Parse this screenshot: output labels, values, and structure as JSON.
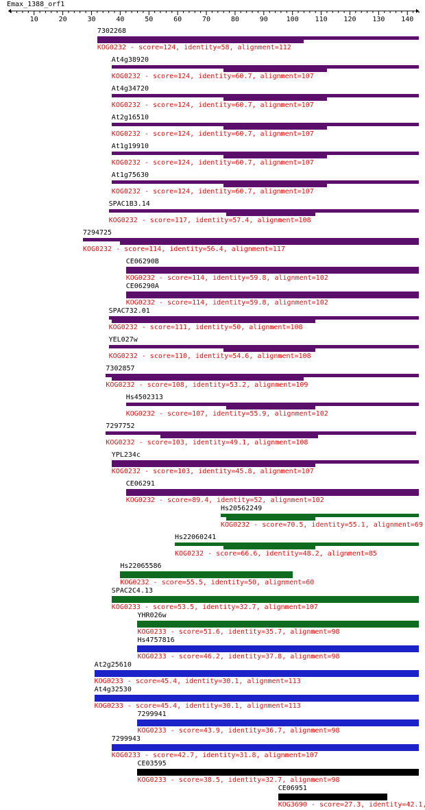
{
  "query": "Emax_1388_orf1",
  "axis": {
    "min": 1,
    "max": 144,
    "ticks": [
      10,
      20,
      30,
      40,
      50,
      60,
      70,
      80,
      90,
      100,
      110,
      120,
      130,
      140
    ]
  },
  "colors": {
    "purple": "#5b0f6b",
    "green": "#0f6b1f",
    "blue": "#1a22c8",
    "black": "#000000",
    "label_red": "#e01010"
  },
  "hits": [
    {
      "name": "7302268",
      "kog": "KOG0232",
      "score": "124",
      "identity": "58",
      "alignment": "112",
      "color": "purple",
      "bar_start": 32,
      "bar_end": 144,
      "inner_start": 32,
      "inner_end": 104
    },
    {
      "name": "At4g38920",
      "kog": "KOG0232",
      "score": "124",
      "identity": "60.7",
      "alignment": "107",
      "color": "purple",
      "bar_start": 37,
      "bar_end": 144,
      "inner_start": 76,
      "inner_end": 112
    },
    {
      "name": "At4g34720",
      "kog": "KOG0232",
      "score": "124",
      "identity": "60.7",
      "alignment": "107",
      "color": "purple",
      "bar_start": 37,
      "bar_end": 144,
      "inner_start": 76,
      "inner_end": 112
    },
    {
      "name": "At2g16510",
      "kog": "KOG0232",
      "score": "124",
      "identity": "60.7",
      "alignment": "107",
      "color": "purple",
      "bar_start": 37,
      "bar_end": 144,
      "inner_start": 76,
      "inner_end": 112
    },
    {
      "name": "At1g19910",
      "kog": "KOG0232",
      "score": "124",
      "identity": "60.7",
      "alignment": "107",
      "color": "purple",
      "bar_start": 37,
      "bar_end": 144,
      "inner_start": 76,
      "inner_end": 112
    },
    {
      "name": "At1g75630",
      "kog": "KOG0232",
      "score": "124",
      "identity": "60.7",
      "alignment": "107",
      "color": "purple",
      "bar_start": 37,
      "bar_end": 144,
      "inner_start": 76,
      "inner_end": 112
    },
    {
      "name": "SPAC1B3.14",
      "kog": "KOG0232",
      "score": "117",
      "identity": "57.4",
      "alignment": "108",
      "color": "purple",
      "bar_start": 36,
      "bar_end": 144,
      "inner_start": 77,
      "inner_end": 108
    },
    {
      "name": "7294725",
      "kog": "KOG0232",
      "score": "114",
      "identity": "56.4",
      "alignment": "117",
      "color": "purple",
      "bar_start": 27,
      "bar_end": 144,
      "inner_start": 40,
      "inner_end": 144
    },
    {
      "name": "CE06290B",
      "kog": "KOG0232",
      "score": "114",
      "identity": "59.8",
      "alignment": "102",
      "color": "purple",
      "bar_start": 42,
      "bar_end": 144,
      "inner_start": 42,
      "inner_end": 144
    },
    {
      "name": "CE06290A",
      "kog": "KOG0232",
      "score": "114",
      "identity": "59.8",
      "alignment": "102",
      "color": "purple",
      "bar_start": 42,
      "bar_end": 144,
      "inner_start": 42,
      "inner_end": 144
    },
    {
      "name": "SPAC732.01",
      "kog": "KOG0232",
      "score": "111",
      "identity": "50",
      "alignment": "108",
      "color": "purple",
      "bar_start": 36,
      "bar_end": 144,
      "inner_start": 37,
      "inner_end": 108
    },
    {
      "name": "YEL027w",
      "kog": "KOG0232",
      "score": "110",
      "identity": "54.6",
      "alignment": "108",
      "color": "purple",
      "bar_start": 36,
      "bar_end": 144,
      "inner_start": 76,
      "inner_end": 108
    },
    {
      "name": "7302857",
      "kog": "KOG0232",
      "score": "108",
      "identity": "53.2",
      "alignment": "109",
      "color": "purple",
      "bar_start": 35,
      "bar_end": 144,
      "inner_start": 37,
      "inner_end": 104
    },
    {
      "name": "Hs4502313",
      "kog": "KOG0232",
      "score": "107",
      "identity": "55.9",
      "alignment": "102",
      "color": "purple",
      "bar_start": 42,
      "bar_end": 144,
      "inner_start": 77,
      "inner_end": 108
    },
    {
      "name": "7297752",
      "kog": "KOG0232",
      "score": "103",
      "identity": "49.1",
      "alignment": "108",
      "color": "purple",
      "bar_start": 35,
      "bar_end": 143,
      "inner_start": 54,
      "inner_end": 109
    },
    {
      "name": "YPL234c",
      "kog": "KOG0232",
      "score": "103",
      "identity": "45.8",
      "alignment": "107",
      "color": "purple",
      "bar_start": 37,
      "bar_end": 144,
      "inner_start": 37,
      "inner_end": 108
    },
    {
      "name": "CE06291",
      "kog": "KOG0232",
      "score": "89.4",
      "identity": "52",
      "alignment": "102",
      "color": "purple",
      "bar_start": 42,
      "bar_end": 144,
      "inner_start": 42,
      "inner_end": 144
    },
    {
      "name": "Hs20562249",
      "kog": "KOG0232",
      "score": "70.5",
      "identity": "55.1",
      "alignment": "69",
      "color": "green",
      "bar_start": 75,
      "bar_end": 144,
      "inner_start": 77,
      "inner_end": 108
    },
    {
      "name": "Hs22060241",
      "kog": "KOG0232",
      "score": "66.6",
      "identity": "48.2",
      "alignment": "85",
      "color": "green",
      "bar_start": 59,
      "bar_end": 144,
      "inner_start": 76,
      "inner_end": 108
    },
    {
      "name": "Hs22065586",
      "kog": "KOG0232",
      "score": "55.5",
      "identity": "50",
      "alignment": "60",
      "color": "green",
      "bar_start": 40,
      "bar_end": 100,
      "inner_start": 40,
      "inner_end": 100
    },
    {
      "name": "SPAC2C4.13",
      "kog": "KOG0233",
      "score": "53.5",
      "identity": "32.7",
      "alignment": "107",
      "color": "green",
      "bar_start": 37,
      "bar_end": 144,
      "inner_start": 37,
      "inner_end": 144
    },
    {
      "name": "YHR026w",
      "kog": "KOG0233",
      "score": "51.6",
      "identity": "35.7",
      "alignment": "98",
      "color": "green",
      "bar_start": 46,
      "bar_end": 144,
      "inner_start": 46,
      "inner_end": 144
    },
    {
      "name": "Hs4757816",
      "kog": "KOG0233",
      "score": "46.2",
      "identity": "37.8",
      "alignment": "98",
      "color": "blue",
      "bar_start": 46,
      "bar_end": 144,
      "inner_start": 46,
      "inner_end": 144
    },
    {
      "name": "At2g25610",
      "kog": "KOG0233",
      "score": "45.4",
      "identity": "30.1",
      "alignment": "113",
      "color": "blue",
      "bar_start": 31,
      "bar_end": 144,
      "inner_start": 31,
      "inner_end": 144
    },
    {
      "name": "At4g32530",
      "kog": "KOG0233",
      "score": "45.4",
      "identity": "30.1",
      "alignment": "113",
      "color": "blue",
      "bar_start": 31,
      "bar_end": 144,
      "inner_start": 31,
      "inner_end": 144
    },
    {
      "name": "7299941",
      "kog": "KOG0233",
      "score": "43.9",
      "identity": "36.7",
      "alignment": "98",
      "color": "blue",
      "bar_start": 46,
      "bar_end": 144,
      "inner_start": 46,
      "inner_end": 144
    },
    {
      "name": "7299943",
      "kog": "KOG0233",
      "score": "42.7",
      "identity": "31.8",
      "alignment": "107",
      "color": "blue",
      "bar_start": 37,
      "bar_end": 144,
      "inner_start": 37,
      "inner_end": 144
    },
    {
      "name": "CE03595",
      "kog": "KOG0233",
      "score": "38.5",
      "identity": "32.7",
      "alignment": "98",
      "color": "black",
      "bar_start": 46,
      "bar_end": 144,
      "inner_start": 46,
      "inner_end": 144
    },
    {
      "name": "CE06951",
      "kog": "KOG3690",
      "score": "27.3",
      "identity": "42.1",
      "alignment": "",
      "color": "black",
      "bar_start": 95,
      "bar_end": 133,
      "inner_start": 95,
      "inner_end": 133
    }
  ]
}
